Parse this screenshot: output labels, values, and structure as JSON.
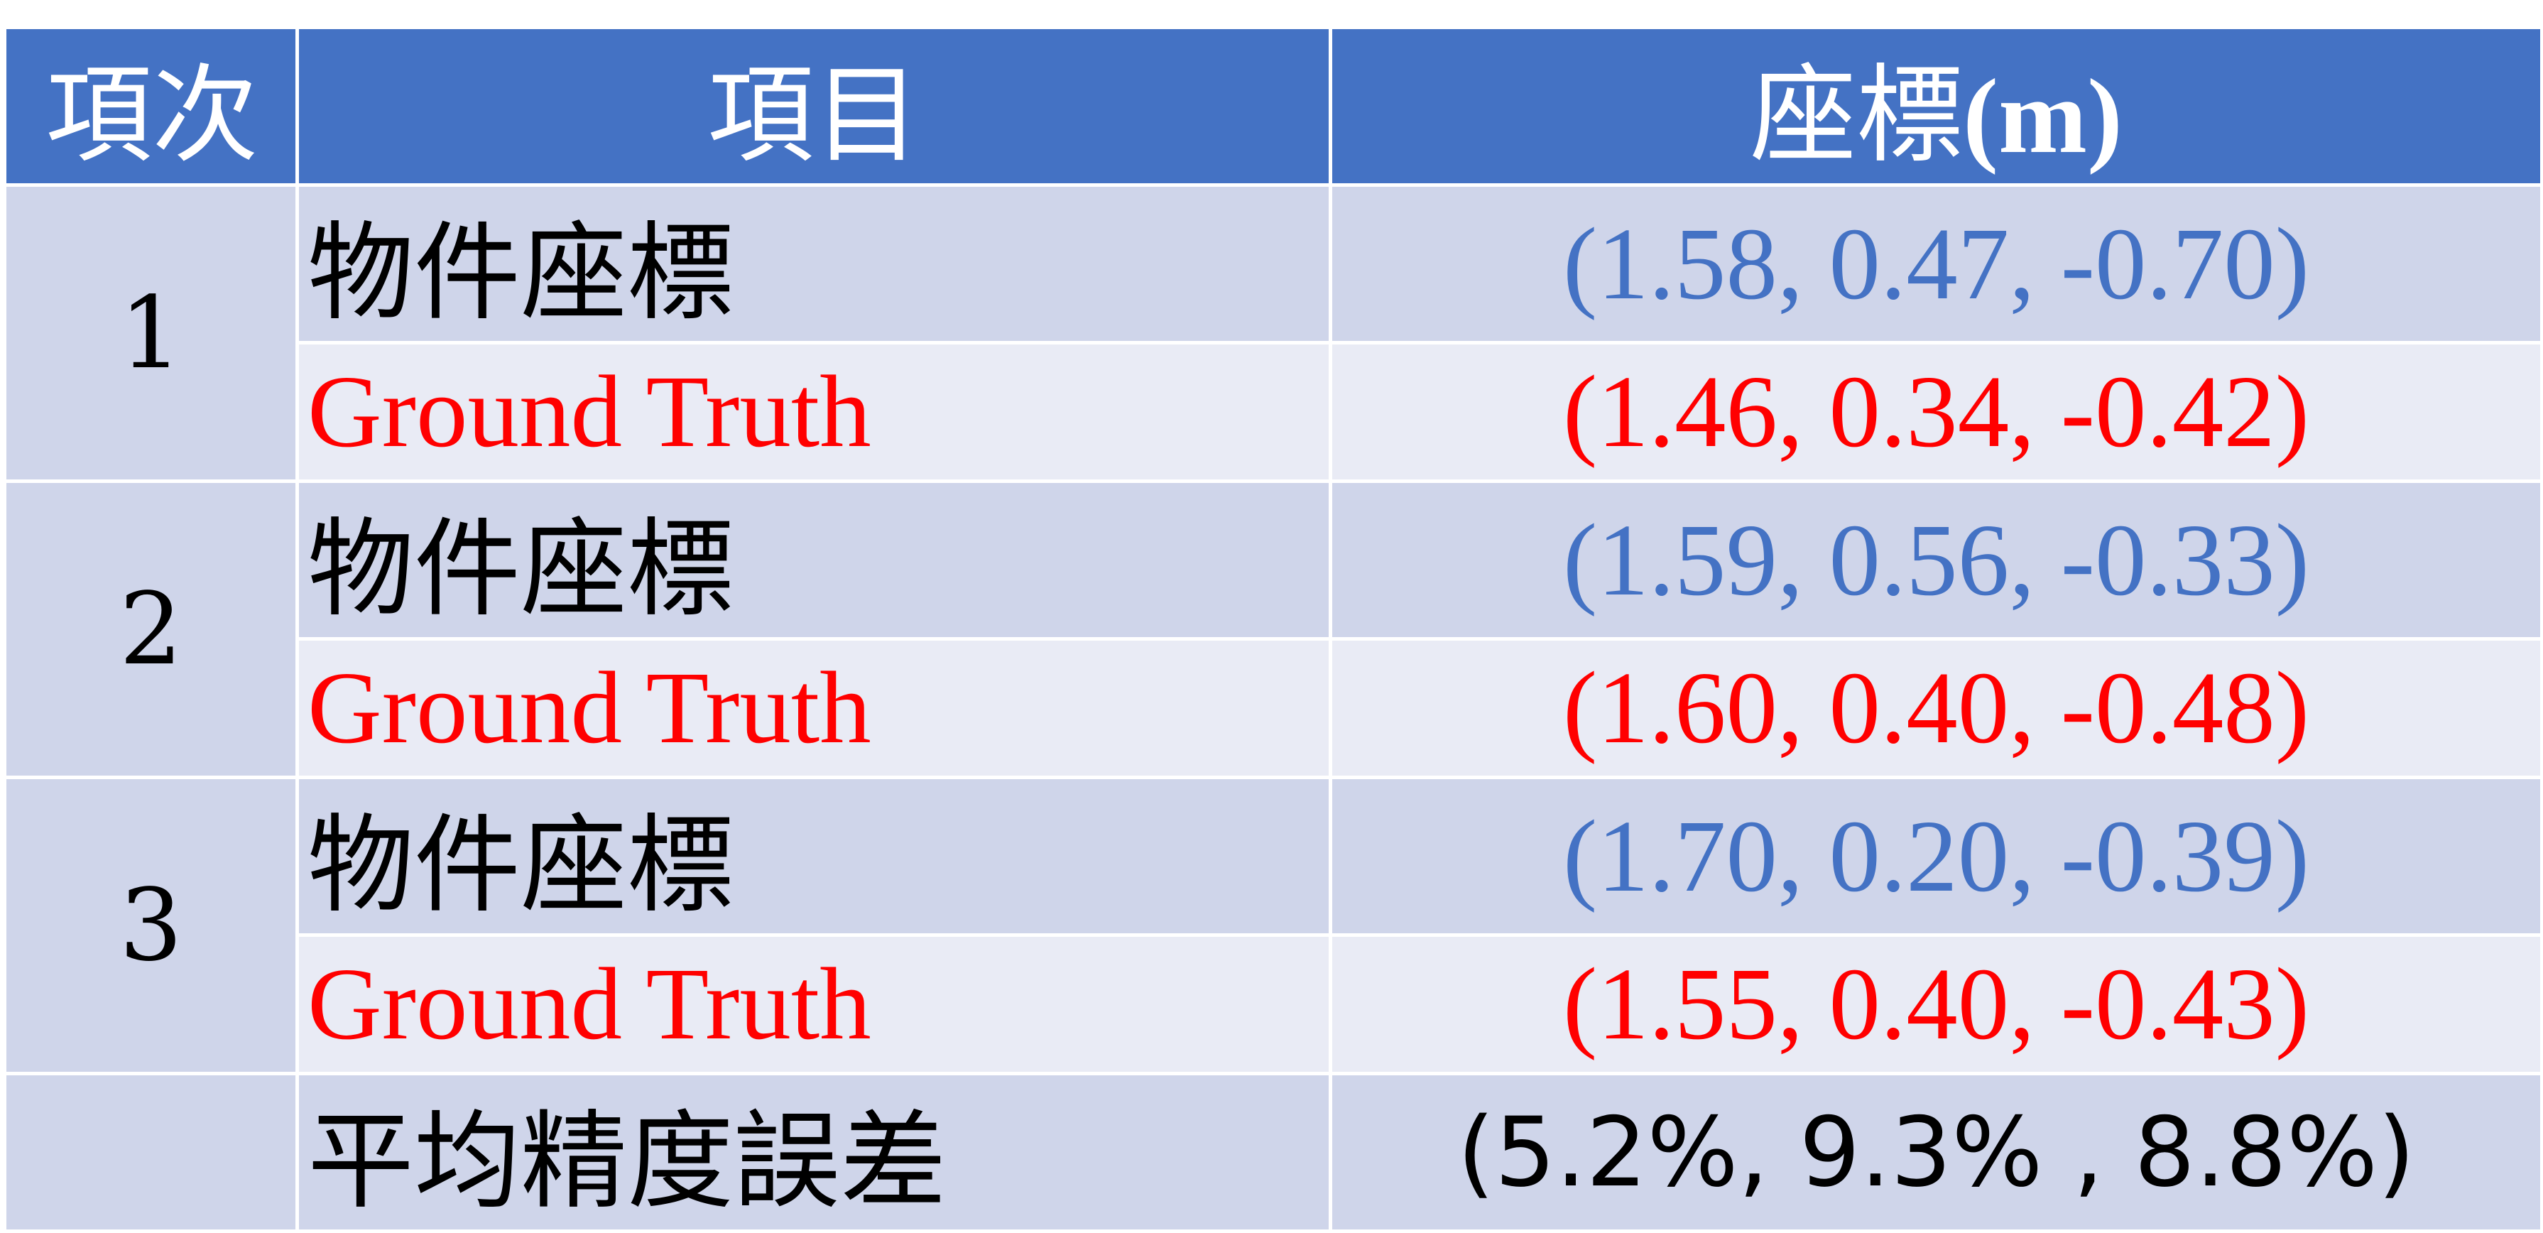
{
  "header": {
    "col_index": "項次",
    "col_item": "項目",
    "col_coord_cjk": "座標",
    "col_coord_unit": "(m)"
  },
  "rows": [
    {
      "index": "1",
      "object_label": "物件座標",
      "object_coord": "(1.58, 0.47, -0.70)",
      "truth_label": "Ground Truth",
      "truth_coord": "(1.46, 0.34, -0.42)"
    },
    {
      "index": "2",
      "object_label": "物件座標",
      "object_coord": "(1.59, 0.56, -0.33)",
      "truth_label": "Ground Truth",
      "truth_coord": "(1.60, 0.40, -0.48)"
    },
    {
      "index": "3",
      "object_label": "物件座標",
      "object_coord": "(1.70, 0.20, -0.39)",
      "truth_label": "Ground Truth",
      "truth_coord": "(1.55, 0.40, -0.43)"
    }
  ],
  "summary": {
    "label": "平均精度誤差",
    "value": "(5.2%, 9.3%  , 8.8%)"
  },
  "colors": {
    "header_bg": "#4472c4",
    "row_dark": "#cfd5ea",
    "row_light": "#e9ebf5",
    "object_coord_color": "#4472c4",
    "truth_color": "#ff0000"
  }
}
